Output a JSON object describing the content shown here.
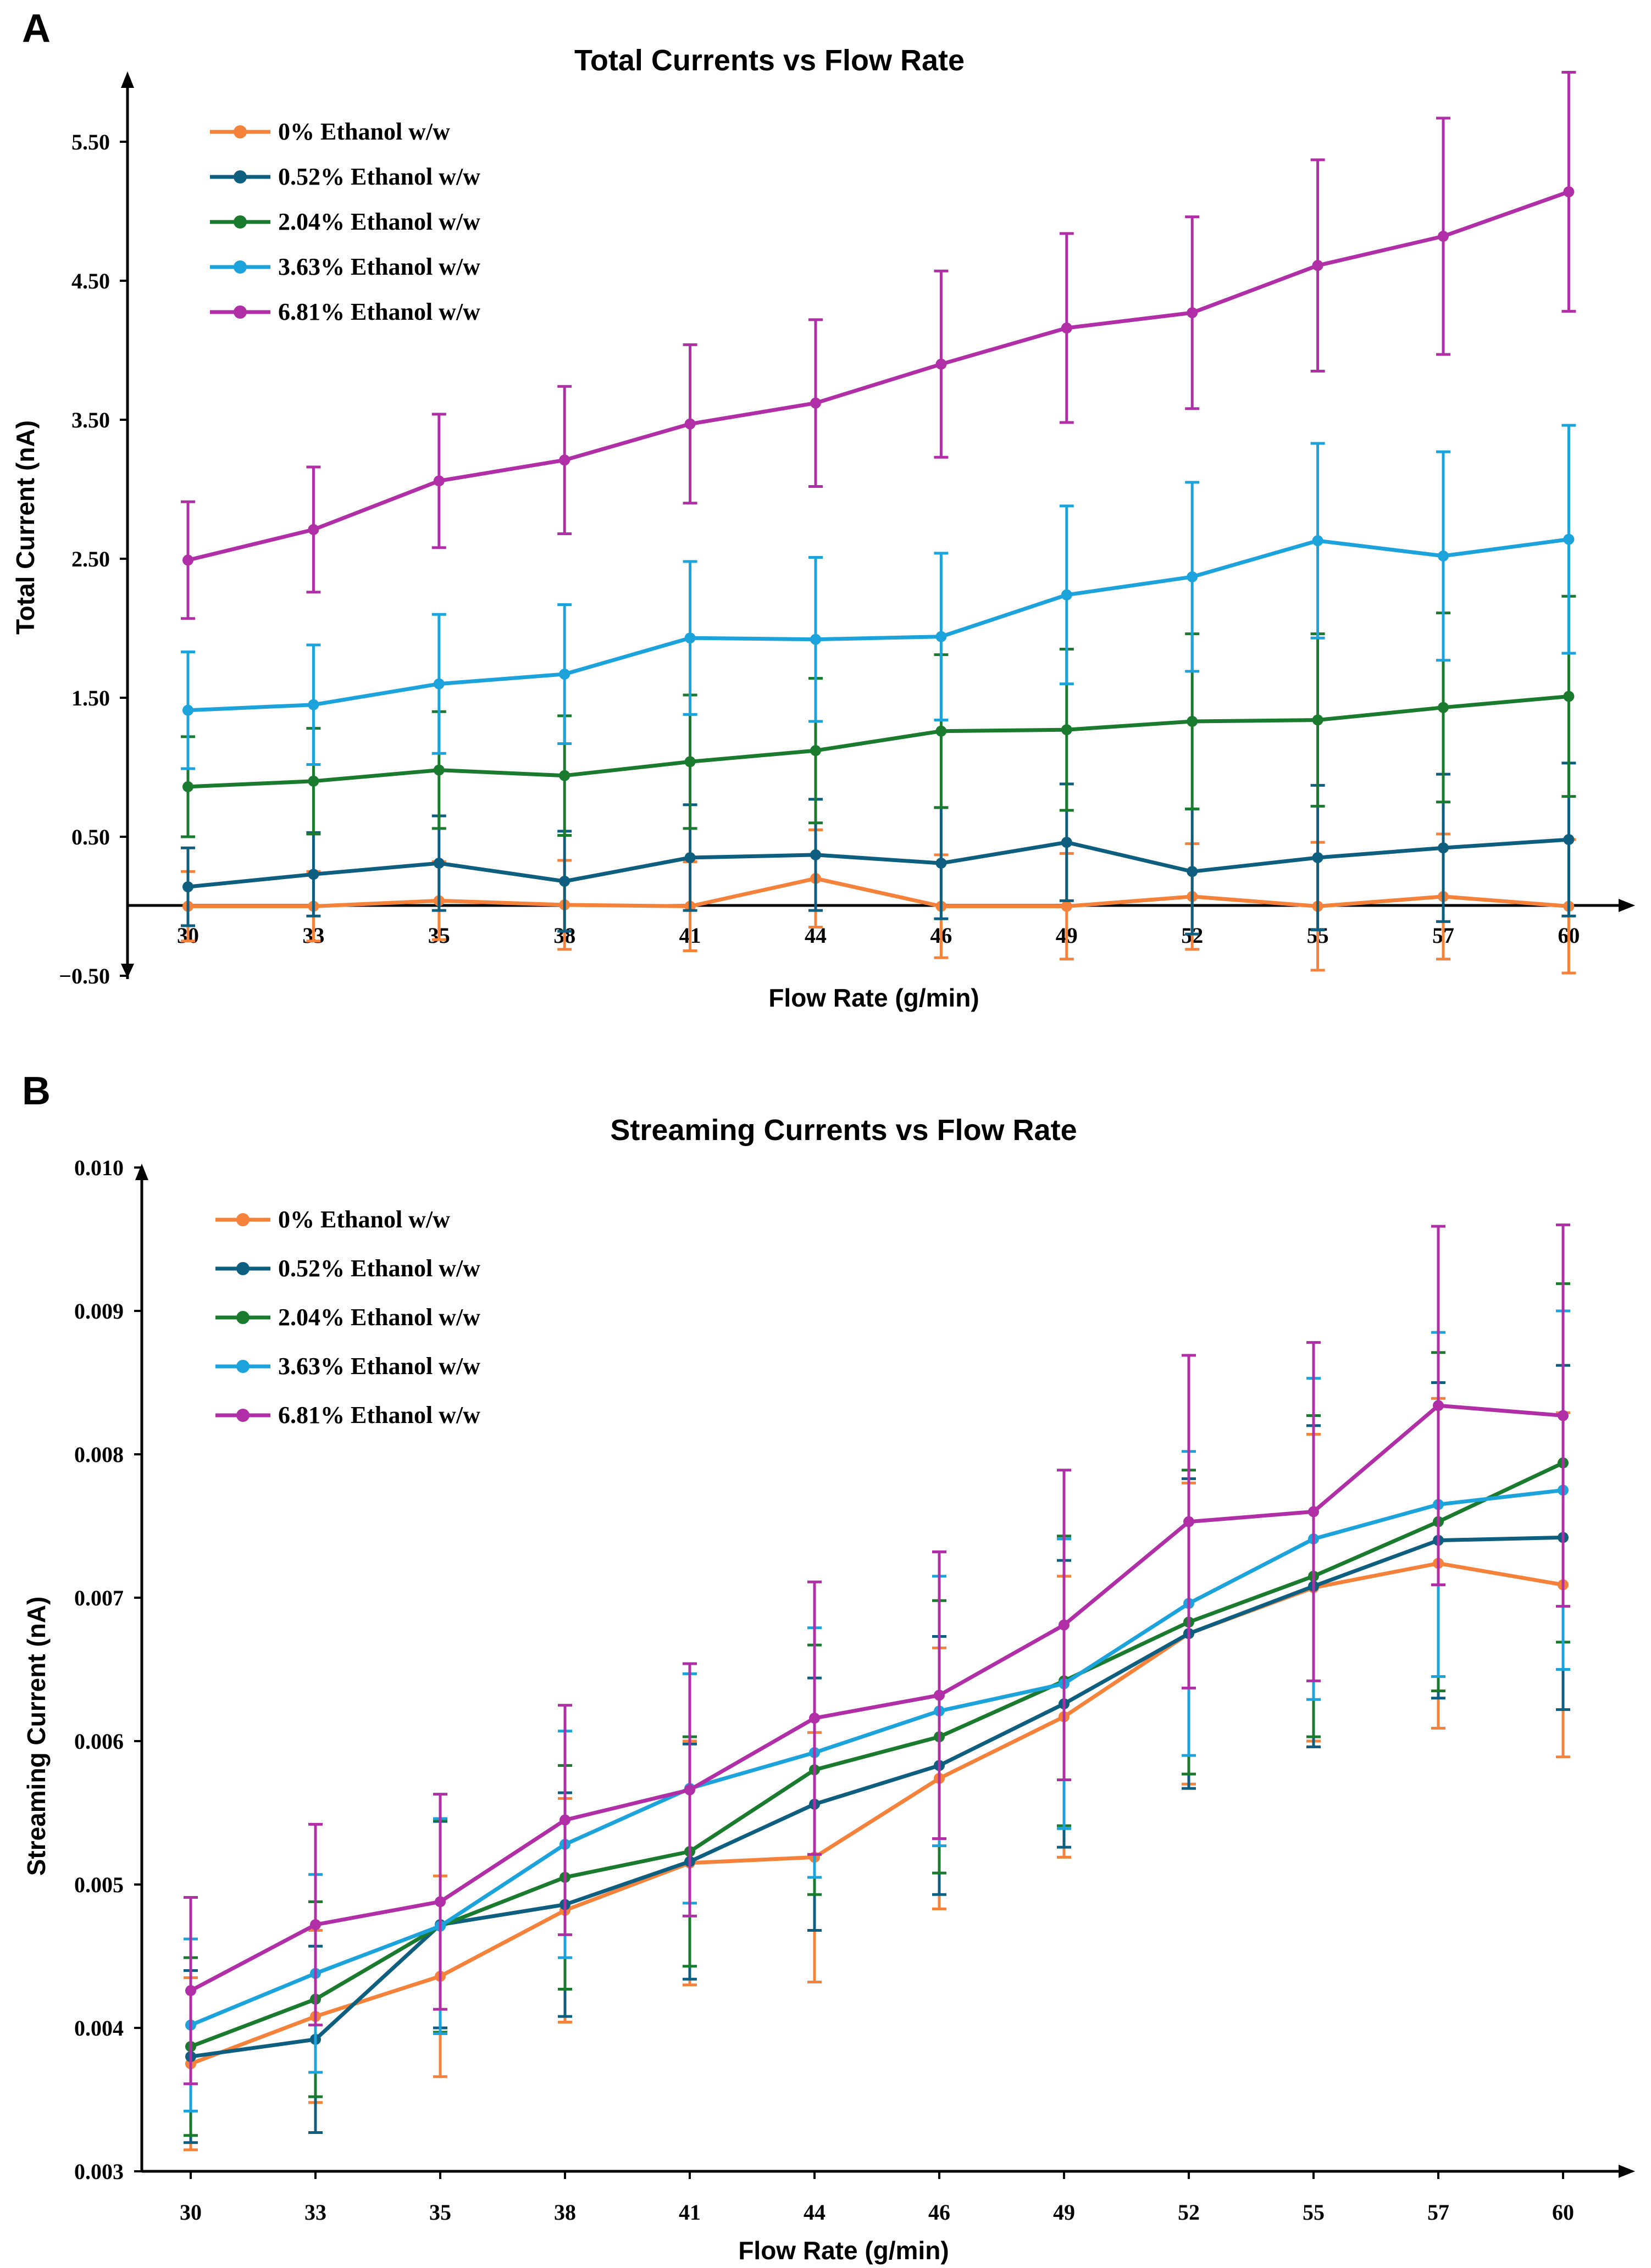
{
  "colors": {
    "s0": "#F5823A",
    "s052": "#0E5E80",
    "s204": "#1A7A2E",
    "s363": "#1CA3DB",
    "s681": "#B02FA6"
  },
  "chart_data": [
    {
      "panel": "A",
      "type": "line",
      "title": "Total Currents vs Flow Rate",
      "xlabel": "Flow Rate (g/min)",
      "ylabel": "Total Current (nA)",
      "categories": [
        "30",
        "33",
        "35",
        "38",
        "41",
        "44",
        "46",
        "49",
        "52",
        "55",
        "57",
        "60"
      ],
      "ylim": [
        -0.5,
        6.0
      ],
      "yticks": [
        -0.5,
        0.5,
        1.5,
        2.5,
        3.5,
        4.5,
        5.5
      ],
      "ytick_labels": [
        "−0.50",
        "0.50",
        "1.50",
        "2.50",
        "3.50",
        "4.50",
        "5.50"
      ],
      "legend_position": "top-left",
      "series": [
        {
          "name": "0% Ethanol w/w",
          "color_key": "s0",
          "values": [
            0.0,
            0.0,
            0.04,
            0.01,
            0.0,
            0.2,
            0.0,
            0.0,
            0.07,
            0.0,
            0.07,
            0.0
          ],
          "errors": [
            0.25,
            0.25,
            0.28,
            0.32,
            0.32,
            0.35,
            0.37,
            0.38,
            0.38,
            0.46,
            0.45,
            0.48
          ]
        },
        {
          "name": "0.52% Ethanol w/w",
          "color_key": "s052",
          "values": [
            0.14,
            0.23,
            0.31,
            0.18,
            0.35,
            0.37,
            0.31,
            0.46,
            0.25,
            0.35,
            0.42,
            0.48
          ],
          "errors": [
            0.28,
            0.3,
            0.34,
            0.36,
            0.38,
            0.4,
            0.4,
            0.42,
            0.45,
            0.52,
            0.53,
            0.55
          ]
        },
        {
          "name": "2.04% Ethanol w/w",
          "color_key": "s204",
          "values": [
            0.86,
            0.9,
            0.98,
            0.94,
            1.04,
            1.12,
            1.26,
            1.27,
            1.33,
            1.34,
            1.43,
            1.51
          ],
          "errors": [
            0.36,
            0.38,
            0.42,
            0.43,
            0.48,
            0.52,
            0.55,
            0.58,
            0.63,
            0.62,
            0.68,
            0.72
          ]
        },
        {
          "name": "3.63% Ethanol w/w",
          "color_key": "s363",
          "values": [
            1.41,
            1.45,
            1.6,
            1.67,
            1.93,
            1.92,
            1.94,
            2.24,
            2.37,
            2.63,
            2.52,
            2.64
          ],
          "errors": [
            0.42,
            0.43,
            0.5,
            0.5,
            0.55,
            0.59,
            0.6,
            0.64,
            0.68,
            0.7,
            0.75,
            0.82
          ]
        },
        {
          "name": "6.81% Ethanol w/w",
          "color_key": "s681",
          "values": [
            2.49,
            2.71,
            3.06,
            3.21,
            3.47,
            3.62,
            3.9,
            4.16,
            4.27,
            4.61,
            4.82,
            5.14
          ],
          "errors": [
            0.42,
            0.45,
            0.48,
            0.53,
            0.57,
            0.6,
            0.67,
            0.68,
            0.69,
            0.76,
            0.85,
            0.86
          ]
        }
      ]
    },
    {
      "panel": "B",
      "type": "line",
      "title": "Streaming Currents vs Flow Rate",
      "xlabel": "Flow Rate (g/min)",
      "ylabel": "Streaming Current (nA)",
      "categories": [
        "30",
        "33",
        "35",
        "38",
        "41",
        "44",
        "46",
        "49",
        "52",
        "55",
        "57",
        "60"
      ],
      "ylim": [
        0.003,
        0.01
      ],
      "yticks": [
        0.003,
        0.004,
        0.005,
        0.006,
        0.007,
        0.008,
        0.009,
        0.01
      ],
      "ytick_labels": [
        "0.003",
        "0.004",
        "0.005",
        "0.006",
        "0.007",
        "0.008",
        "0.009",
        "0.010"
      ],
      "legend_position": "top-left",
      "series": [
        {
          "name": "0% Ethanol w/w",
          "color_key": "s0",
          "values": [
            0.00375,
            0.00408,
            0.00436,
            0.00482,
            0.00515,
            0.00519,
            0.00574,
            0.00617,
            0.00675,
            0.00707,
            0.00724,
            0.00709
          ],
          "errors": [
            0.0006,
            0.0006,
            0.0007,
            0.00078,
            0.00085,
            0.00087,
            0.00091,
            0.00098,
            0.00105,
            0.00107,
            0.00115,
            0.0012
          ]
        },
        {
          "name": "0.52% Ethanol w/w",
          "color_key": "s052",
          "values": [
            0.0038,
            0.00392,
            0.00472,
            0.00486,
            0.00516,
            0.00556,
            0.00583,
            0.00626,
            0.00675,
            0.00708,
            0.0074,
            0.00742
          ],
          "errors": [
            0.0006,
            0.00065,
            0.00072,
            0.00078,
            0.00082,
            0.00088,
            0.0009,
            0.001,
            0.00108,
            0.00112,
            0.0011,
            0.0012
          ]
        },
        {
          "name": "2.04% Ethanol w/w",
          "color_key": "s204",
          "values": [
            0.00387,
            0.0042,
            0.00471,
            0.00505,
            0.00523,
            0.0058,
            0.00603,
            0.00642,
            0.00683,
            0.00715,
            0.00753,
            0.00794
          ],
          "errors": [
            0.00062,
            0.00068,
            0.00074,
            0.00078,
            0.0008,
            0.00087,
            0.00095,
            0.00101,
            0.00106,
            0.00112,
            0.00118,
            0.00125
          ]
        },
        {
          "name": "3.63% Ethanol w/w",
          "color_key": "s363",
          "values": [
            0.00402,
            0.00438,
            0.00471,
            0.00528,
            0.00567,
            0.00592,
            0.00621,
            0.0064,
            0.00696,
            0.00741,
            0.00765,
            0.00775
          ],
          "errors": [
            0.0006,
            0.00069,
            0.00075,
            0.00079,
            0.0008,
            0.00087,
            0.00094,
            0.00101,
            0.00106,
            0.00112,
            0.0012,
            0.00125
          ]
        },
        {
          "name": "6.81% Ethanol w/w",
          "color_key": "s681",
          "values": [
            0.00426,
            0.00472,
            0.00488,
            0.00545,
            0.00566,
            0.00616,
            0.00632,
            0.00681,
            0.00753,
            0.0076,
            0.00834,
            0.00827
          ],
          "errors": [
            0.00065,
            0.0007,
            0.00075,
            0.0008,
            0.00088,
            0.00095,
            0.001,
            0.00108,
            0.00116,
            0.00118,
            0.00125,
            0.00133
          ]
        }
      ]
    }
  ]
}
